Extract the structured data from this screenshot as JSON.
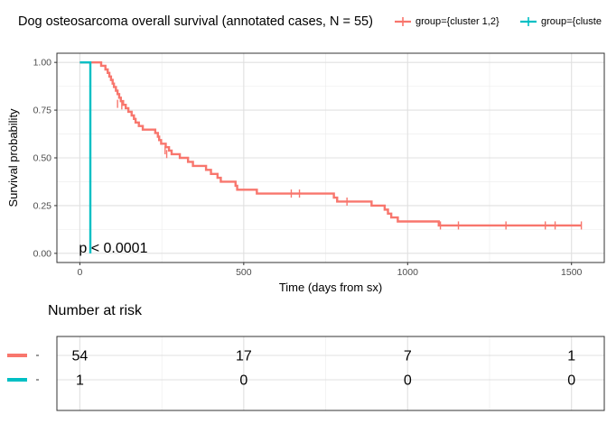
{
  "title": "Dog osteosarcoma overall survival (annotated cases, N = 55)",
  "legend": [
    {
      "label": "group={cluster 1,2}",
      "color": "#F8766D"
    },
    {
      "label": "group={cluste",
      "color": "#00BFC4"
    }
  ],
  "chart_data": {
    "type": "line",
    "subtype": "kaplan-meier",
    "xlabel": "Time (days from sx)",
    "ylabel": "Survival probability",
    "xlim": [
      0,
      1530
    ],
    "ylim": [
      0,
      1
    ],
    "x_ticks": [
      0,
      500,
      1000,
      1500
    ],
    "y_ticks": [
      0,
      0.25,
      0.5,
      0.75,
      1.0
    ],
    "y_tick_labels": [
      "0.00",
      "0.25",
      "0.50",
      "0.75",
      "1.00"
    ],
    "grid": true,
    "legend_position": "top",
    "annotation": "p < 0.0001",
    "series": [
      {
        "name": "group={cluster 1,2}",
        "color": "#F8766D",
        "steps": [
          [
            0,
            1.0
          ],
          [
            65,
            0.982
          ],
          [
            78,
            0.963
          ],
          [
            85,
            0.945
          ],
          [
            90,
            0.926
          ],
          [
            95,
            0.908
          ],
          [
            100,
            0.889
          ],
          [
            104,
            0.871
          ],
          [
            110,
            0.852
          ],
          [
            115,
            0.834
          ],
          [
            120,
            0.815
          ],
          [
            125,
            0.797
          ],
          [
            132,
            0.778
          ],
          [
            140,
            0.76
          ],
          [
            148,
            0.741
          ],
          [
            158,
            0.722
          ],
          [
            165,
            0.704
          ],
          [
            170,
            0.685
          ],
          [
            180,
            0.667
          ],
          [
            192,
            0.648
          ],
          [
            230,
            0.63
          ],
          [
            238,
            0.611
          ],
          [
            242,
            0.593
          ],
          [
            248,
            0.574
          ],
          [
            262,
            0.556
          ],
          [
            272,
            0.538
          ],
          [
            280,
            0.519
          ],
          [
            305,
            0.5
          ],
          [
            330,
            0.479
          ],
          [
            345,
            0.458
          ],
          [
            385,
            0.437
          ],
          [
            400,
            0.416
          ],
          [
            420,
            0.396
          ],
          [
            430,
            0.375
          ],
          [
            475,
            0.354
          ],
          [
            480,
            0.333
          ],
          [
            540,
            0.313
          ],
          [
            775,
            0.292
          ],
          [
            785,
            0.271
          ],
          [
            890,
            0.25
          ],
          [
            930,
            0.229
          ],
          [
            940,
            0.208
          ],
          [
            950,
            0.188
          ],
          [
            970,
            0.167
          ],
          [
            1095,
            0.146
          ],
          [
            1530,
            0.146
          ]
        ],
        "censored": [
          [
            115,
            0.783
          ],
          [
            128,
            0.775
          ],
          [
            260,
            0.54
          ],
          [
            265,
            0.52
          ],
          [
            645,
            0.313
          ],
          [
            670,
            0.313
          ],
          [
            815,
            0.271
          ],
          [
            1100,
            0.146
          ],
          [
            1155,
            0.146
          ],
          [
            1300,
            0.146
          ],
          [
            1420,
            0.146
          ],
          [
            1450,
            0.146
          ],
          [
            1530,
            0.146
          ]
        ]
      },
      {
        "name": "group={cluste",
        "color": "#00BFC4",
        "steps": [
          [
            0,
            1.0
          ],
          [
            32,
            1.0
          ],
          [
            32,
            0.0
          ]
        ],
        "censored": []
      }
    ],
    "risk_table": {
      "title": "Number at risk",
      "times": [
        0,
        500,
        1000,
        1500
      ],
      "rows": [
        {
          "color": "#F8766D",
          "counts": [
            "54",
            "17",
            "7",
            "1"
          ]
        },
        {
          "color": "#00BFC4",
          "counts": [
            "1",
            "0",
            "0",
            "0"
          ]
        }
      ]
    }
  }
}
